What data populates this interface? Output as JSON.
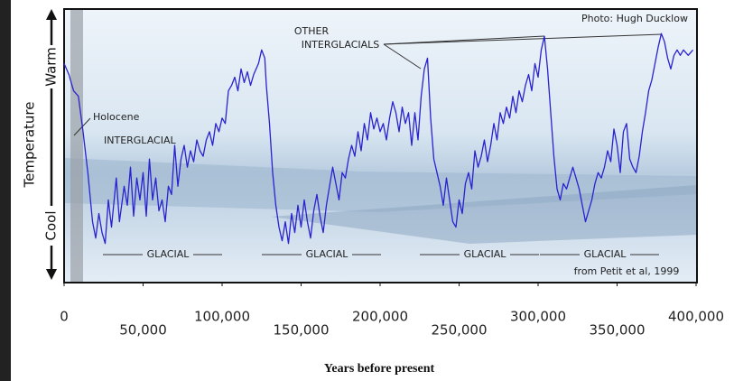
{
  "chart_data": {
    "type": "line",
    "x_label": "Years before present",
    "y_label": "Temperature",
    "annotations": [
      "Warm",
      "Cool",
      "Photo: Hugh Ducklow",
      "OTHER",
      "INTERGLACIALS",
      "Holocene",
      "INTERGLACIAL",
      "GLACIAL",
      "GLACIAL",
      "GLACIAL",
      "GLACIAL",
      "from Petit et al, 1999"
    ],
    "xlim": [
      0,
      400000
    ],
    "ylim": [
      0,
      100
    ],
    "xticks": [
      0,
      {
        "value": 50000,
        "label": "50,000"
      },
      {
        "value": 100000,
        "label": "100,000"
      },
      {
        "value": 150000,
        "label": "150,000"
      },
      {
        "value": 200000,
        "label": "200,000"
      },
      {
        "value": 250000,
        "label": "250,000"
      },
      {
        "value": 300000,
        "label": "300,000"
      },
      {
        "value": 350000,
        "label": "350,000"
      },
      {
        "value": 400000,
        "label": "400,000"
      }
    ],
    "series": [
      {
        "color": "#2a22d0",
        "x": [
          0,
          3000,
          6000,
          9000,
          12000,
          15000,
          18000,
          20000,
          22000,
          24000,
          26000,
          28000,
          30000,
          33000,
          35000,
          38000,
          40000,
          42000,
          44000,
          46000,
          48000,
          50000,
          52000,
          54000,
          56000,
          58000,
          60000,
          62000,
          64000,
          66000,
          68000,
          70000,
          72000,
          74000,
          76000,
          78000,
          80000,
          82000,
          84000,
          86000,
          88000,
          90000,
          92000,
          94000,
          96000,
          98000,
          100000,
          102000,
          104000,
          106000,
          108000,
          110000,
          112000,
          114000,
          116000,
          118000,
          120000,
          123000,
          125000,
          127000,
          128000,
          130000,
          132000,
          134000,
          136000,
          138000,
          140000,
          142000,
          144000,
          146000,
          148000,
          150000,
          152000,
          154000,
          156000,
          158000,
          160000,
          162000,
          164000,
          166000,
          168000,
          170000,
          172000,
          174000,
          176000,
          178000,
          180000,
          182000,
          184000,
          186000,
          188000,
          190000,
          192000,
          194000,
          196000,
          198000,
          200000,
          202000,
          204000,
          206000,
          208000,
          210000,
          212000,
          214000,
          216000,
          218000,
          220000,
          222000,
          224000,
          226000,
          228000,
          230000,
          232000,
          234000,
          236000,
          238000,
          240000,
          242000,
          244000,
          246000,
          248000,
          250000,
          252000,
          254000,
          256000,
          258000,
          260000,
          262000,
          264000,
          266000,
          268000,
          270000,
          272000,
          274000,
          276000,
          278000,
          280000,
          282000,
          284000,
          286000,
          288000,
          290000,
          292000,
          294000,
          296000,
          298000,
          300000,
          302000,
          304000,
          306000,
          308000,
          310000,
          312000,
          314000,
          316000,
          318000,
          320000,
          322000,
          324000,
          326000,
          328000,
          330000,
          332000,
          334000,
          336000,
          338000,
          340000,
          342000,
          344000,
          346000,
          348000,
          350000,
          352000,
          354000,
          356000,
          358000,
          360000,
          362000,
          364000,
          366000,
          368000,
          370000,
          372000,
          374000,
          376000,
          378000,
          380000,
          382000,
          384000,
          386000,
          388000,
          390000,
          392000,
          395000,
          398000
        ],
        "values": [
          80,
          76,
          70,
          68,
          55,
          40,
          22,
          16,
          25,
          18,
          14,
          30,
          20,
          38,
          22,
          35,
          28,
          42,
          24,
          38,
          30,
          40,
          24,
          45,
          30,
          38,
          26,
          30,
          22,
          35,
          32,
          50,
          35,
          45,
          50,
          42,
          48,
          44,
          52,
          48,
          46,
          52,
          55,
          50,
          58,
          55,
          60,
          58,
          70,
          72,
          75,
          70,
          78,
          73,
          77,
          72,
          76,
          80,
          85,
          82,
          72,
          58,
          40,
          28,
          20,
          15,
          22,
          14,
          25,
          18,
          28,
          20,
          30,
          22,
          16,
          26,
          32,
          24,
          18,
          28,
          35,
          42,
          36,
          30,
          40,
          38,
          45,
          50,
          46,
          55,
          48,
          58,
          52,
          62,
          56,
          60,
          55,
          58,
          52,
          60,
          66,
          62,
          55,
          64,
          58,
          62,
          50,
          62,
          52,
          68,
          78,
          82,
          60,
          45,
          40,
          35,
          28,
          38,
          30,
          22,
          20,
          30,
          25,
          36,
          40,
          34,
          48,
          42,
          46,
          52,
          44,
          50,
          58,
          52,
          62,
          58,
          64,
          60,
          68,
          62,
          70,
          66,
          72,
          76,
          70,
          80,
          75,
          85,
          90,
          78,
          62,
          46,
          34,
          30,
          36,
          34,
          38,
          42,
          38,
          34,
          28,
          22,
          26,
          30,
          36,
          40,
          38,
          42,
          48,
          44,
          56,
          50,
          40,
          55,
          58,
          45,
          42,
          40,
          46,
          55,
          62,
          70,
          74,
          80,
          86,
          91,
          88,
          82,
          78,
          83,
          85,
          83,
          85,
          83,
          85
        ]
      }
    ]
  }
}
